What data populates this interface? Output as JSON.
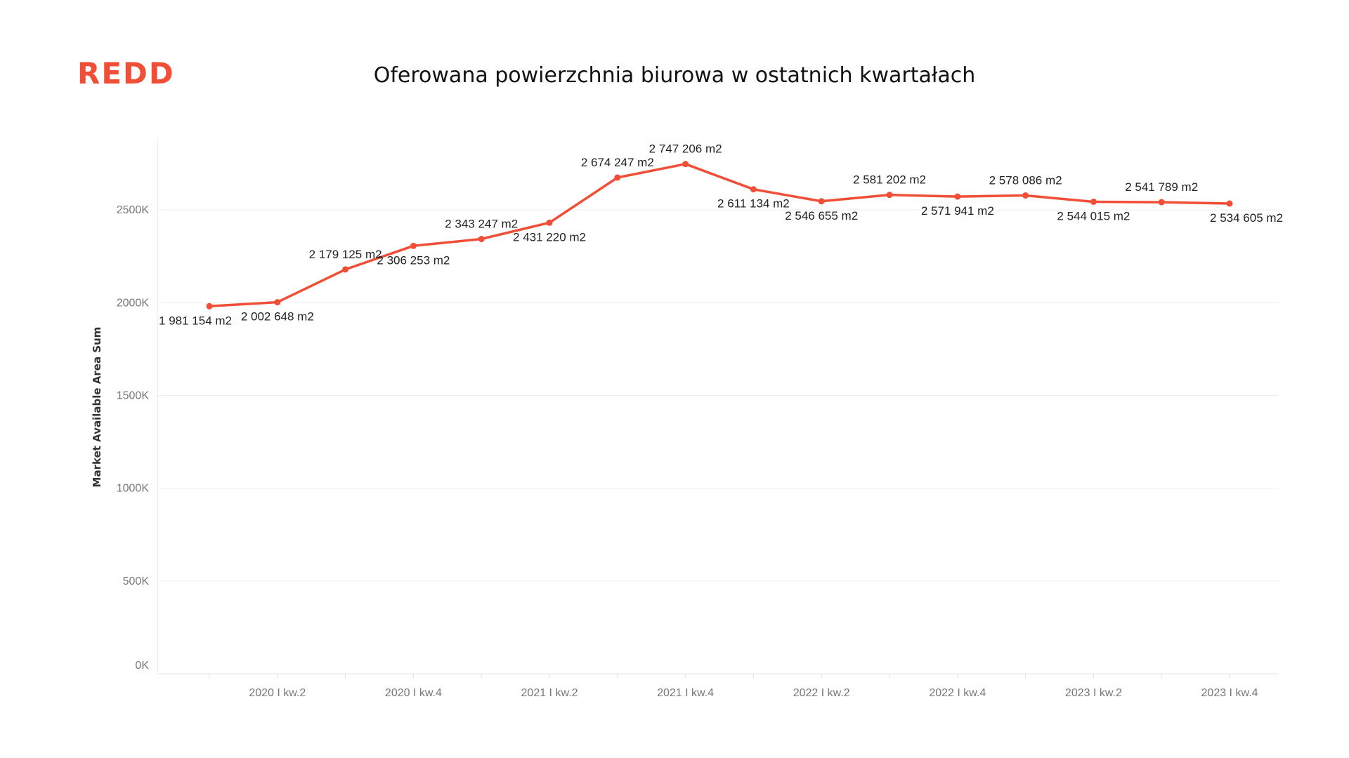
{
  "logo": {
    "text": "REDD"
  },
  "colors": {
    "accent": "#f04e37",
    "grid": "#eeeeee",
    "axis_text": "#777777"
  },
  "chart_data": {
    "type": "line",
    "title": "Oferowana powierzchnia biurowa w ostatnich kwartałach",
    "xlabel": "",
    "ylabel": "Market Available Area Sum",
    "ylim": [
      0,
      2890000
    ],
    "y_ticks": [
      {
        "value": 0,
        "label": "0K"
      },
      {
        "value": 500000,
        "label": "500K"
      },
      {
        "value": 1000000,
        "label": "1000K"
      },
      {
        "value": 1500000,
        "label": "1500K"
      },
      {
        "value": 2000000,
        "label": "2000K"
      },
      {
        "value": 2500000,
        "label": "2500K"
      }
    ],
    "x_tick_labels": [
      {
        "index": 1,
        "label": "2020 I kw.2"
      },
      {
        "index": 3,
        "label": "2020 I kw.4"
      },
      {
        "index": 5,
        "label": "2021 I kw.2"
      },
      {
        "index": 7,
        "label": "2021 I kw.4"
      },
      {
        "index": 9,
        "label": "2022 I kw.2"
      },
      {
        "index": 11,
        "label": "2022 I kw.4"
      },
      {
        "index": 13,
        "label": "2023 I kw.2"
      },
      {
        "index": 15,
        "label": "2023 I kw.4"
      }
    ],
    "grid": true,
    "series": [
      {
        "color": "#f04e37",
        "points": [
          {
            "value": 1981154,
            "label": "1 981 154 m2",
            "pos": "below"
          },
          {
            "value": 2002648,
            "label": "2 002 648 m2",
            "pos": "below"
          },
          {
            "value": 2179125,
            "label": "2 179 125 m2",
            "pos": "above"
          },
          {
            "value": 2306253,
            "label": "2 306 253 m2",
            "pos": "below"
          },
          {
            "value": 2343247,
            "label": "2 343 247 m2",
            "pos": "above"
          },
          {
            "value": 2431220,
            "label": "2 431 220 m2",
            "pos": "below"
          },
          {
            "value": 2674247,
            "label": "2 674 247 m2",
            "pos": "above"
          },
          {
            "value": 2747206,
            "label": "2 747 206 m2",
            "pos": "above"
          },
          {
            "value": 2611134,
            "label": "2 611 134 m2",
            "pos": "below"
          },
          {
            "value": 2546655,
            "label": "2 546 655 m2",
            "pos": "below"
          },
          {
            "value": 2581202,
            "label": "2 581 202 m2",
            "pos": "above"
          },
          {
            "value": 2571941,
            "label": "2 571 941 m2",
            "pos": "below"
          },
          {
            "value": 2578086,
            "label": "2 578 086 m2",
            "pos": "above"
          },
          {
            "value": 2544015,
            "label": "2 544 015 m2",
            "pos": "below"
          },
          {
            "value": 2541789,
            "label": "2 541 789 m2",
            "pos": "above"
          },
          {
            "value": 2534605,
            "label": "2 534 605 m2",
            "pos": "below"
          }
        ]
      }
    ]
  }
}
